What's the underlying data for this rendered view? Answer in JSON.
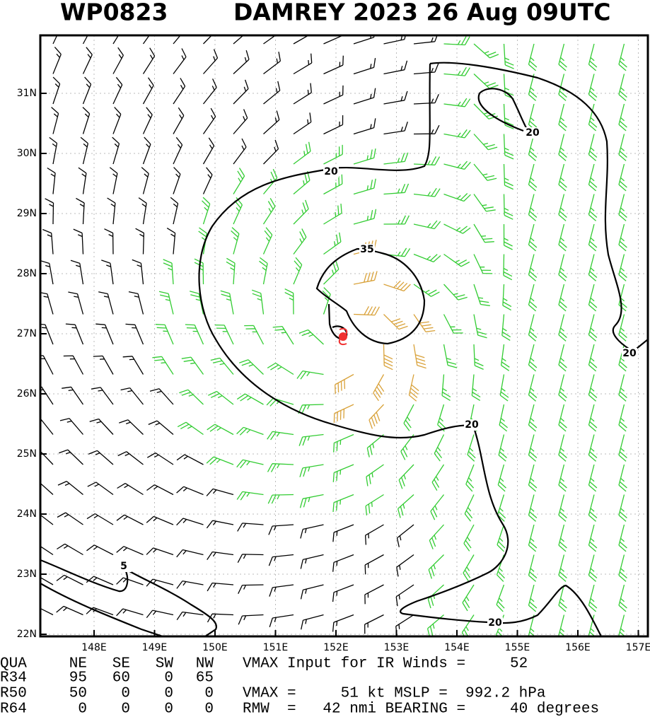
{
  "header": {
    "storm_id": "WP0823",
    "title": "DAMREY 2023 26 Aug 09UTC"
  },
  "map": {
    "lat_labels": [
      "22N",
      "23N",
      "24N",
      "25N",
      "26N",
      "27N",
      "28N",
      "29N",
      "30N",
      "31N"
    ],
    "lon_labels": [
      "148E",
      "149E",
      "150E",
      "151E",
      "152E",
      "153E",
      "154E",
      "155E",
      "156E",
      "157E"
    ],
    "contour_labels": [
      20,
      20,
      20,
      20,
      20,
      35,
      5
    ]
  },
  "table": {
    "columns": [
      "QUA",
      "NE",
      "SE",
      "SW",
      "NW"
    ],
    "rows": [
      [
        "R34",
        95,
        60,
        0,
        65
      ],
      [
        "R50",
        50,
        0,
        0,
        0
      ],
      [
        "R64",
        0,
        0,
        0,
        0
      ]
    ]
  },
  "info": [
    "VMAX Input for IR Winds =     52",
    "VMAX =     51 kt MSLP =  992.2 hPa",
    "RMW  =   42 nmi BEARING =     40 degrees"
  ]
}
